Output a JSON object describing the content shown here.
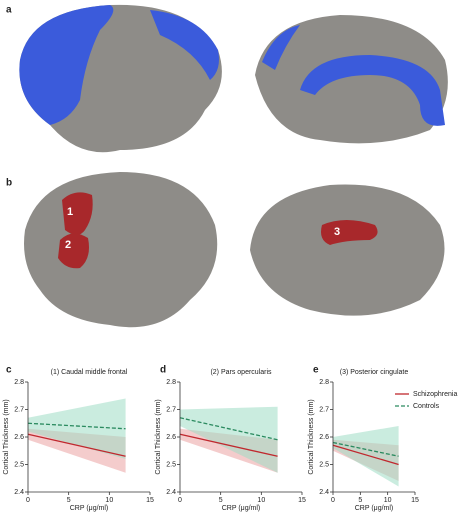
{
  "panel_labels": [
    "a",
    "b",
    "c",
    "d",
    "e"
  ],
  "region_labels": [
    "1",
    "2",
    "3"
  ],
  "chart_data": [
    {
      "type": "line",
      "title": "(1) Caudal middle frontal",
      "xlabel": "CRP (μg/ml)",
      "ylabel": "Cortical Thickness (mm)",
      "xlim": [
        0,
        15
      ],
      "xticks": [
        0,
        5,
        10,
        15
      ],
      "ylim": [
        2.4,
        2.8
      ],
      "yticks": [
        2.4,
        2.5,
        2.6,
        2.7,
        2.8
      ],
      "series": [
        {
          "color": "#c0282e",
          "band_color": "#eba3a3",
          "dashed": false,
          "x": [
            0,
            12
          ],
          "values": [
            2.61,
            2.53
          ],
          "lower": [
            2.59,
            2.47
          ],
          "upper": [
            2.63,
            2.6
          ]
        },
        {
          "color": "#2a8a5f",
          "band_color": "#9fdcc4",
          "dashed": true,
          "x": [
            0,
            12
          ],
          "values": [
            2.65,
            2.63
          ],
          "lower": [
            2.62,
            2.52
          ],
          "upper": [
            2.67,
            2.74
          ]
        }
      ]
    },
    {
      "type": "line",
      "title": "(2) Pars opercularis",
      "xlabel": "CRP (μg/ml)",
      "ylabel": "Cortical Thickness (mm)",
      "xlim": [
        0,
        15
      ],
      "xticks": [
        0,
        5,
        10,
        15
      ],
      "ylim": [
        2.4,
        2.8
      ],
      "yticks": [
        2.4,
        2.5,
        2.6,
        2.7,
        2.8
      ],
      "series": [
        {
          "color": "#c0282e",
          "band_color": "#eba3a3",
          "dashed": false,
          "x": [
            0,
            12
          ],
          "values": [
            2.61,
            2.53
          ],
          "lower": [
            2.59,
            2.47
          ],
          "upper": [
            2.63,
            2.59
          ]
        },
        {
          "color": "#2a8a5f",
          "band_color": "#9fdcc4",
          "dashed": true,
          "x": [
            0,
            12
          ],
          "values": [
            2.67,
            2.59
          ],
          "lower": [
            2.64,
            2.47
          ],
          "upper": [
            2.7,
            2.71
          ]
        }
      ]
    },
    {
      "type": "line",
      "title": "(3) Posterior cingulate",
      "xlabel": "CRP (μg/ml)",
      "ylabel": "Cortical Thickness (mm)",
      "xlim": [
        0,
        15
      ],
      "xticks": [
        0,
        5,
        10,
        15
      ],
      "ylim": [
        2.4,
        2.8
      ],
      "yticks": [
        2.4,
        2.5,
        2.6,
        2.7,
        2.8
      ],
      "legend": "upper right",
      "series": [
        {
          "name": "Schizophrenia",
          "color": "#c0282e",
          "band_color": "#eba3a3",
          "dashed": false,
          "x": [
            0,
            12
          ],
          "values": [
            2.57,
            2.5
          ],
          "lower": [
            2.55,
            2.44
          ],
          "upper": [
            2.59,
            2.57
          ]
        },
        {
          "name": "Controls",
          "color": "#2a8a5f",
          "band_color": "#9fdcc4",
          "dashed": true,
          "x": [
            0,
            12
          ],
          "values": [
            2.58,
            2.53
          ],
          "lower": [
            2.56,
            2.42
          ],
          "upper": [
            2.6,
            2.64
          ]
        }
      ]
    }
  ]
}
